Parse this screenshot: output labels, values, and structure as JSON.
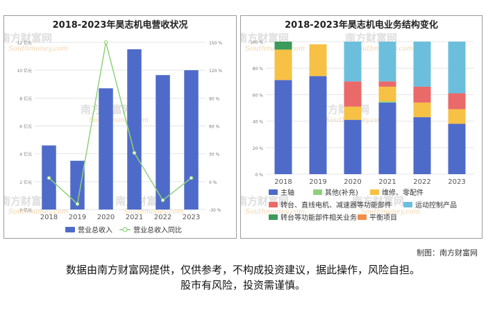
{
  "watermark": {
    "brand": "南方财富网",
    "site": "Southmoney.com"
  },
  "credit": "制图：南方财富网",
  "disclaimer": {
    "line1": "数据由南方财富网提供，仅供参考，不构成投资建议，据此操作，风险自担。",
    "line2": "股市有风险，投资需谨慎。"
  },
  "chart_data": [
    {
      "type": "bar",
      "title": "2018-2023年昊志机电营收状况",
      "categories": [
        "2018",
        "2019",
        "2020",
        "2021",
        "2022",
        "2023"
      ],
      "series": [
        {
          "name": "营业总收入",
          "type": "bar",
          "axis": "left",
          "color": "#4f6bc9",
          "values": [
            4.6,
            3.5,
            8.7,
            11.5,
            9.65,
            10.0
          ]
        },
        {
          "name": "营业总收入同比",
          "type": "line",
          "axis": "right",
          "color": "#8fd17a",
          "values": [
            4,
            -24,
            150,
            31,
            -20,
            4
          ]
        }
      ],
      "left_axis": {
        "min": 0,
        "max": 12,
        "ticks": [
          "0 亿元",
          "2 亿元",
          "4 亿元",
          "6 亿元",
          "8 亿元",
          "10 亿元",
          "12 亿元"
        ]
      },
      "right_axis": {
        "min": -30,
        "max": 150,
        "ticks": [
          "-30 %",
          "0 %",
          "30 %",
          "60 %",
          "90 %",
          "120 %",
          "150 %"
        ]
      },
      "grid": true,
      "legend_position": "bottom"
    },
    {
      "type": "bar",
      "stacked": true,
      "title": "2018-2023年昊志机电业务结构变化",
      "categories": [
        "2018",
        "2019",
        "2020",
        "2021",
        "2022",
        "2023"
      ],
      "series": [
        {
          "name": "主轴",
          "color": "#4f6bc9",
          "values": [
            71,
            74,
            41,
            54,
            43,
            38
          ]
        },
        {
          "name": "其他(补充)",
          "color": "#8fd17a",
          "values": [
            0,
            0,
            0,
            1,
            0,
            0
          ]
        },
        {
          "name": "维修、零配件",
          "color": "#f6c144",
          "values": [
            23,
            24,
            10,
            11,
            11,
            11
          ]
        },
        {
          "name": "转台、直线电机、减速器等功能部件",
          "color": "#ea6a6a",
          "values": [
            0,
            0,
            19,
            4,
            12,
            12
          ]
        },
        {
          "name": "运动控制产品",
          "color": "#6bbfdc",
          "values": [
            0,
            0,
            30,
            30,
            34,
            39
          ]
        },
        {
          "name": "转台等功能部件相关业务",
          "color": "#3b9a5c",
          "values": [
            6,
            0,
            0,
            0,
            0,
            0
          ]
        },
        {
          "name": "平衡项目",
          "color": "#f08d4b",
          "values": [
            0,
            0,
            0,
            0,
            0,
            0
          ]
        }
      ],
      "y_axis": {
        "min": 0,
        "max": 100,
        "ticks": [
          "0 %",
          "20 %",
          "40 %",
          "60 %",
          "80 %",
          "100 %"
        ]
      },
      "grid": true,
      "legend_position": "bottom"
    }
  ]
}
